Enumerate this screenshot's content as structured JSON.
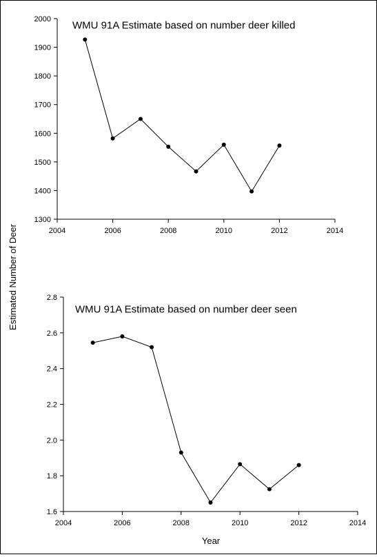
{
  "shared_ylabel": "Estimated Number of Deer",
  "shared_xlabel": "Year",
  "chart_data": [
    {
      "type": "line",
      "title": "WMU 91A Estimate based on number deer killed",
      "xlabel": "",
      "ylabel": "",
      "xlim": [
        2004,
        2014
      ],
      "ylim": [
        1300,
        2000
      ],
      "xticks": [
        2004,
        2006,
        2008,
        2010,
        2012,
        2014
      ],
      "yticks": [
        1300,
        1400,
        1500,
        1600,
        1700,
        1800,
        1900,
        2000
      ],
      "x": [
        2005,
        2006,
        2007,
        2008,
        2009,
        2010,
        2011,
        2012
      ],
      "y": [
        1927,
        1582,
        1650,
        1553,
        1467,
        1560,
        1397,
        1557
      ],
      "grid": false,
      "colors": {
        "line": "#000000",
        "marker": "#000000"
      }
    },
    {
      "type": "line",
      "title": "WMU 91A Estimate based on number deer seen",
      "xlabel": "",
      "ylabel": "",
      "xlim": [
        2004,
        2014
      ],
      "ylim": [
        1.6,
        2.8
      ],
      "xticks": [
        2004,
        2006,
        2008,
        2010,
        2012,
        2014
      ],
      "yticks": [
        1.6,
        1.8,
        2.0,
        2.2,
        2.4,
        2.6,
        2.8
      ],
      "ytick_labels": [
        "1.6",
        "1.8",
        "2.0",
        "2.2",
        "2.4",
        "2.6",
        "2.8"
      ],
      "x": [
        2005,
        2006,
        2007,
        2008,
        2009,
        2010,
        2011,
        2012
      ],
      "y": [
        2.545,
        2.58,
        2.52,
        1.93,
        1.65,
        1.865,
        1.725,
        1.86
      ],
      "grid": false,
      "colors": {
        "line": "#000000",
        "marker": "#000000"
      }
    }
  ]
}
